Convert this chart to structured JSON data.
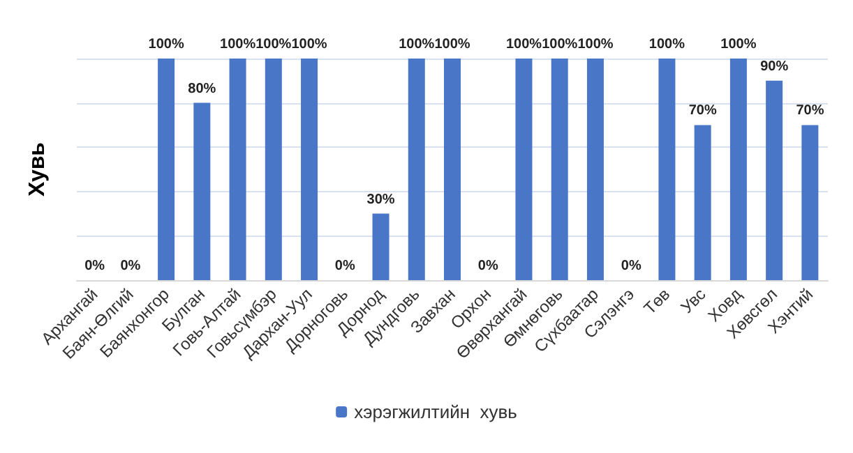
{
  "chart_data": {
    "type": "bar",
    "ylabel": "Хувь",
    "categories": [
      "Архангай",
      "Баян-Өлгий",
      "Баянхонгор",
      "Булган",
      "Говь-Алтай",
      "Говьсүмбэр",
      "Дархан-Уул",
      "Дорноговь",
      "Дорнод",
      "Дундговь",
      "Завхан",
      "Орхон",
      "Өвөрхангай",
      "Өмнөговь",
      "Сүхбаатар",
      "Сэлэнгэ",
      "Төв",
      "Увс",
      "Ховд",
      "Хөвсгөл",
      "Хэнтий"
    ],
    "series": [
      {
        "name": "хэрэгжилтийн  хувь",
        "color": "#4a76c8",
        "values": [
          0,
          0,
          100,
          80,
          100,
          100,
          100,
          0,
          30,
          100,
          100,
          0,
          100,
          100,
          100,
          0,
          100,
          70,
          100,
          90,
          70
        ],
        "value_labels": [
          "0%",
          "0%",
          "100%",
          "80%",
          "100%",
          "100%",
          "100%",
          "0%",
          "30%",
          "100%",
          "100%",
          "0%",
          "100%",
          "100%",
          "100%",
          "0%",
          "100%",
          "70%",
          "100%",
          "90%",
          "70%"
        ]
      }
    ],
    "ylim": [
      0,
      100
    ],
    "yticks": [
      {
        "value": 0,
        "label": null
      },
      {
        "value": 20,
        "label": null
      },
      {
        "value": 40,
        "label": null
      },
      {
        "value": 60,
        "label": null
      },
      {
        "value": 80,
        "label": null
      },
      {
        "value": 100,
        "label": null
      }
    ],
    "grid": "y",
    "legend": "bottom",
    "tick_labels": "x"
  }
}
